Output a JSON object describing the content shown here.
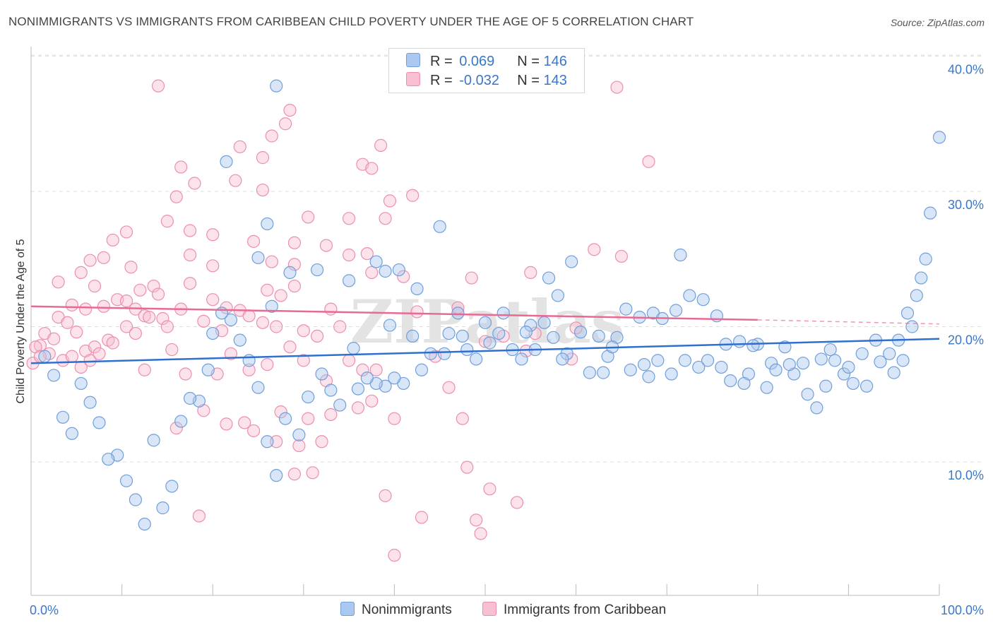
{
  "title": "NONIMMIGRANTS VS IMMIGRANTS FROM CARIBBEAN CHILD POVERTY UNDER THE AGE OF 5 CORRELATION CHART",
  "source": "Source: ZipAtlas.com",
  "watermark": "ZIPatlas",
  "legend": {
    "r_label": "R =",
    "n_label": "N =",
    "rows": [
      {
        "r": "0.069",
        "n": "146"
      },
      {
        "r": "-0.032",
        "n": "143"
      }
    ]
  },
  "colors": {
    "blue_fill": "#aac8f0",
    "blue_stroke": "#6f9fdb",
    "blue_line": "#2f6fcf",
    "pink_fill": "#f8bfd0",
    "pink_stroke": "#ec8fae",
    "pink_line": "#e86a93",
    "axis_text": "#3a77c9",
    "grid": "#dddddd"
  },
  "chart_data": {
    "type": "scatter",
    "title": "NONIMMIGRANTS VS IMMIGRANTS FROM CARIBBEAN CHILD POVERTY UNDER THE AGE OF 5 CORRELATION CHART",
    "xlabel": "",
    "ylabel": "Child Poverty Under the Age of 5",
    "xlim": [
      0,
      100
    ],
    "ylim": [
      0,
      41
    ],
    "x_tick_labels": [
      "0.0%",
      "100.0%"
    ],
    "y_ticks": [
      10,
      20,
      30,
      40
    ],
    "y_tick_labels": [
      "10.0%",
      "20.0%",
      "30.0%",
      "40.0%"
    ],
    "grid": true,
    "legend_position": "bottom",
    "series": [
      {
        "name": "Nonimmigrants",
        "r": 0.069,
        "n": 146,
        "trend": {
          "x0": 0,
          "y0": 17.3,
          "x1": 100,
          "y1": 19.1
        },
        "points": [
          [
            27.0,
            37.8
          ],
          [
            21.5,
            32.2
          ],
          [
            26.0,
            27.6
          ],
          [
            45.0,
            27.4
          ],
          [
            25.0,
            25.1
          ],
          [
            26.5,
            21.5
          ],
          [
            28.5,
            24.0
          ],
          [
            31.5,
            24.2
          ],
          [
            35.0,
            23.4
          ],
          [
            38.0,
            24.8
          ],
          [
            39.0,
            24.1
          ],
          [
            40.5,
            24.2
          ],
          [
            39.5,
            20.1
          ],
          [
            42.5,
            22.8
          ],
          [
            47.0,
            21.0
          ],
          [
            50.0,
            20.3
          ],
          [
            52.0,
            21.0
          ],
          [
            55.0,
            20.1
          ],
          [
            54.5,
            19.6
          ],
          [
            57.0,
            23.6
          ],
          [
            58.0,
            22.3
          ],
          [
            59.5,
            24.8
          ],
          [
            65.5,
            21.3
          ],
          [
            67.0,
            20.7
          ],
          [
            68.5,
            21.0
          ],
          [
            69.5,
            20.6
          ],
          [
            71.0,
            21.2
          ],
          [
            71.5,
            25.3
          ],
          [
            72.5,
            22.3
          ],
          [
            75.5,
            20.8
          ],
          [
            78.0,
            18.9
          ],
          [
            80.0,
            18.7
          ],
          [
            81.5,
            17.3
          ],
          [
            83.0,
            18.5
          ],
          [
            85.0,
            17.3
          ],
          [
            87.0,
            17.6
          ],
          [
            88.0,
            18.3
          ],
          [
            89.5,
            16.5
          ],
          [
            90.5,
            15.8
          ],
          [
            92.0,
            15.6
          ],
          [
            93.5,
            17.4
          ],
          [
            95.0,
            16.6
          ],
          [
            96.0,
            17.5
          ],
          [
            97.0,
            20.0
          ],
          [
            98.0,
            23.6
          ],
          [
            99.0,
            28.4
          ],
          [
            100.0,
            34.0
          ],
          [
            98.5,
            25.0
          ],
          [
            97.5,
            22.3
          ],
          [
            96.5,
            21.0
          ],
          [
            95.5,
            19.0
          ],
          [
            94.5,
            18.0
          ],
          [
            93.0,
            19.0
          ],
          [
            91.5,
            18.0
          ],
          [
            90.0,
            17.0
          ],
          [
            88.5,
            17.5
          ],
          [
            87.5,
            15.6
          ],
          [
            86.5,
            14.0
          ],
          [
            85.5,
            15.0
          ],
          [
            84.0,
            16.5
          ],
          [
            83.5,
            17.2
          ],
          [
            82.0,
            16.8
          ],
          [
            81.0,
            15.5
          ],
          [
            79.0,
            16.5
          ],
          [
            78.5,
            15.8
          ],
          [
            77.0,
            16.0
          ],
          [
            76.0,
            17.0
          ],
          [
            74.5,
            17.5
          ],
          [
            73.5,
            17.0
          ],
          [
            72.0,
            17.5
          ],
          [
            70.5,
            16.5
          ],
          [
            69.0,
            17.5
          ],
          [
            68.0,
            16.3
          ],
          [
            67.5,
            17.2
          ],
          [
            66.0,
            16.8
          ],
          [
            64.5,
            19.2
          ],
          [
            63.5,
            17.8
          ],
          [
            62.5,
            19.3
          ],
          [
            61.5,
            16.6
          ],
          [
            60.5,
            19.6
          ],
          [
            59.0,
            18.0
          ],
          [
            58.5,
            17.6
          ],
          [
            57.5,
            19.2
          ],
          [
            56.5,
            20.3
          ],
          [
            55.5,
            18.3
          ],
          [
            54.0,
            17.6
          ],
          [
            53.0,
            18.3
          ],
          [
            51.5,
            19.5
          ],
          [
            50.5,
            18.8
          ],
          [
            49.0,
            17.6
          ],
          [
            48.0,
            18.3
          ],
          [
            47.5,
            19.3
          ],
          [
            46.0,
            19.5
          ],
          [
            45.5,
            18.0
          ],
          [
            44.0,
            18.0
          ],
          [
            43.0,
            16.8
          ],
          [
            42.0,
            19.3
          ],
          [
            41.0,
            15.8
          ],
          [
            40.0,
            16.2
          ],
          [
            39.0,
            15.6
          ],
          [
            38.0,
            15.8
          ],
          [
            37.0,
            16.2
          ],
          [
            36.0,
            15.4
          ],
          [
            35.5,
            18.4
          ],
          [
            34.0,
            14.2
          ],
          [
            33.0,
            15.3
          ],
          [
            32.0,
            16.5
          ],
          [
            30.5,
            14.8
          ],
          [
            29.5,
            12.0
          ],
          [
            28.0,
            13.2
          ],
          [
            27.0,
            9.0
          ],
          [
            26.0,
            11.5
          ],
          [
            25.0,
            15.5
          ],
          [
            24.0,
            17.5
          ],
          [
            23.0,
            19.0
          ],
          [
            22.0,
            20.5
          ],
          [
            21.0,
            21.0
          ],
          [
            20.0,
            19.5
          ],
          [
            19.5,
            16.8
          ],
          [
            18.5,
            14.5
          ],
          [
            17.5,
            14.7
          ],
          [
            16.5,
            13.0
          ],
          [
            15.5,
            8.2
          ],
          [
            14.5,
            6.6
          ],
          [
            13.5,
            11.6
          ],
          [
            12.5,
            5.4
          ],
          [
            11.5,
            7.2
          ],
          [
            10.5,
            8.6
          ],
          [
            9.5,
            10.5
          ],
          [
            8.5,
            10.2
          ],
          [
            7.5,
            12.9
          ],
          [
            6.5,
            14.4
          ],
          [
            5.5,
            15.8
          ],
          [
            4.5,
            12.1
          ],
          [
            3.5,
            13.3
          ],
          [
            2.5,
            16.4
          ],
          [
            1.5,
            17.8
          ],
          [
            63.0,
            16.6
          ],
          [
            64.0,
            18.5
          ],
          [
            74.0,
            22.0
          ],
          [
            76.5,
            18.7
          ],
          [
            79.5,
            18.6
          ]
        ]
      },
      {
        "name": "Immigrants from Caribbean",
        "r": -0.032,
        "n": 143,
        "trend": {
          "x0": 0,
          "y0": 21.5,
          "x1": 80,
          "y1": 20.5,
          "dash_to_x": 100,
          "dash_to_y": 20.2
        },
        "points": [
          [
            14.0,
            37.8
          ],
          [
            28.5,
            36.0
          ],
          [
            28.0,
            35.0
          ],
          [
            26.5,
            34.1
          ],
          [
            23.0,
            33.3
          ],
          [
            25.5,
            32.5
          ],
          [
            38.5,
            33.4
          ],
          [
            36.5,
            32.0
          ],
          [
            37.5,
            31.7
          ],
          [
            16.5,
            31.8
          ],
          [
            18.0,
            30.6
          ],
          [
            22.5,
            30.8
          ],
          [
            25.5,
            30.1
          ],
          [
            42.0,
            29.7
          ],
          [
            39.5,
            29.3
          ],
          [
            16.0,
            29.6
          ],
          [
            30.5,
            28.1
          ],
          [
            35.0,
            28.0
          ],
          [
            39.0,
            28.0
          ],
          [
            15.0,
            27.8
          ],
          [
            10.5,
            27.0
          ],
          [
            17.5,
            27.1
          ],
          [
            20.0,
            26.8
          ],
          [
            24.5,
            26.3
          ],
          [
            29.0,
            26.2
          ],
          [
            32.5,
            26.0
          ],
          [
            9.0,
            26.4
          ],
          [
            8.0,
            25.1
          ],
          [
            6.5,
            24.9
          ],
          [
            17.5,
            25.3
          ],
          [
            20.0,
            24.5
          ],
          [
            26.5,
            24.8
          ],
          [
            29.0,
            24.6
          ],
          [
            35.0,
            25.3
          ],
          [
            37.0,
            25.4
          ],
          [
            37.5,
            24.0
          ],
          [
            5.5,
            24.0
          ],
          [
            3.0,
            23.3
          ],
          [
            7.0,
            23.0
          ],
          [
            11.0,
            24.4
          ],
          [
            13.5,
            23.0
          ],
          [
            12.0,
            22.7
          ],
          [
            14.0,
            22.4
          ],
          [
            17.5,
            23.2
          ],
          [
            20.0,
            22.0
          ],
          [
            21.5,
            21.4
          ],
          [
            23.0,
            21.2
          ],
          [
            26.0,
            22.7
          ],
          [
            27.5,
            22.3
          ],
          [
            29.0,
            23.0
          ],
          [
            33.0,
            21.3
          ],
          [
            4.5,
            21.6
          ],
          [
            6.0,
            21.3
          ],
          [
            8.0,
            21.5
          ],
          [
            9.5,
            22.0
          ],
          [
            10.5,
            21.9
          ],
          [
            11.5,
            21.3
          ],
          [
            12.5,
            20.8
          ],
          [
            14.5,
            20.6
          ],
          [
            15.0,
            20.0
          ],
          [
            16.5,
            21.3
          ],
          [
            19.0,
            20.4
          ],
          [
            21.0,
            19.7
          ],
          [
            24.0,
            20.8
          ],
          [
            25.5,
            20.3
          ],
          [
            27.0,
            20.0
          ],
          [
            30.0,
            19.7
          ],
          [
            31.5,
            19.3
          ],
          [
            34.0,
            20.0
          ],
          [
            3.0,
            20.7
          ],
          [
            4.0,
            20.3
          ],
          [
            5.0,
            19.6
          ],
          [
            6.0,
            18.2
          ],
          [
            7.0,
            18.5
          ],
          [
            8.5,
            19.0
          ],
          [
            9.0,
            18.8
          ],
          [
            10.5,
            20.0
          ],
          [
            11.5,
            19.5
          ],
          [
            13.0,
            20.7
          ],
          [
            1.0,
            18.6
          ],
          [
            1.5,
            19.5
          ],
          [
            2.0,
            18.0
          ],
          [
            2.5,
            19.1
          ],
          [
            3.5,
            17.5
          ],
          [
            4.5,
            17.8
          ],
          [
            5.5,
            17.0
          ],
          [
            6.5,
            17.5
          ],
          [
            7.5,
            18.0
          ],
          [
            0.5,
            18.5
          ],
          [
            0.2,
            17.3
          ],
          [
            1.0,
            17.8
          ],
          [
            12.5,
            16.8
          ],
          [
            15.5,
            18.3
          ],
          [
            17.0,
            16.5
          ],
          [
            20.5,
            16.5
          ],
          [
            22.0,
            18.0
          ],
          [
            24.0,
            16.8
          ],
          [
            26.0,
            17.2
          ],
          [
            28.5,
            18.5
          ],
          [
            30.0,
            17.5
          ],
          [
            32.5,
            16.0
          ],
          [
            35.0,
            17.5
          ],
          [
            36.5,
            16.8
          ],
          [
            38.0,
            16.8
          ],
          [
            16.0,
            12.5
          ],
          [
            19.0,
            13.8
          ],
          [
            21.5,
            12.8
          ],
          [
            23.5,
            12.9
          ],
          [
            24.5,
            12.3
          ],
          [
            27.0,
            11.5
          ],
          [
            27.5,
            13.7
          ],
          [
            29.5,
            11.2
          ],
          [
            30.5,
            13.2
          ],
          [
            32.0,
            11.5
          ],
          [
            33.0,
            13.5
          ],
          [
            36.0,
            14.0
          ],
          [
            37.5,
            14.5
          ],
          [
            40.0,
            13.2
          ],
          [
            31.0,
            9.2
          ],
          [
            29.0,
            9.1
          ],
          [
            39.0,
            7.5
          ],
          [
            43.0,
            5.9
          ],
          [
            48.0,
            9.6
          ],
          [
            49.0,
            5.7
          ],
          [
            50.5,
            8.0
          ],
          [
            53.5,
            7.0
          ],
          [
            49.5,
            4.7
          ],
          [
            40.0,
            3.1
          ],
          [
            18.5,
            6.0
          ],
          [
            52.0,
            19.3
          ],
          [
            47.0,
            21.4
          ],
          [
            48.5,
            23.6
          ],
          [
            55.0,
            24.0
          ],
          [
            59.5,
            17.6
          ],
          [
            62.0,
            25.7
          ],
          [
            65.0,
            25.2
          ],
          [
            64.5,
            37.7
          ],
          [
            68.0,
            32.2
          ],
          [
            60.0,
            19.9
          ],
          [
            55.5,
            19.5
          ],
          [
            54.5,
            18.2
          ],
          [
            50.0,
            18.9
          ],
          [
            44.5,
            17.8
          ],
          [
            42.5,
            21.1
          ],
          [
            41.0,
            23.7
          ],
          [
            46.0,
            15.5
          ],
          [
            47.5,
            13.2
          ]
        ]
      }
    ]
  },
  "bottom_legend": [
    {
      "label": "Nonimmigrants"
    },
    {
      "label": "Immigrants from Caribbean"
    }
  ]
}
